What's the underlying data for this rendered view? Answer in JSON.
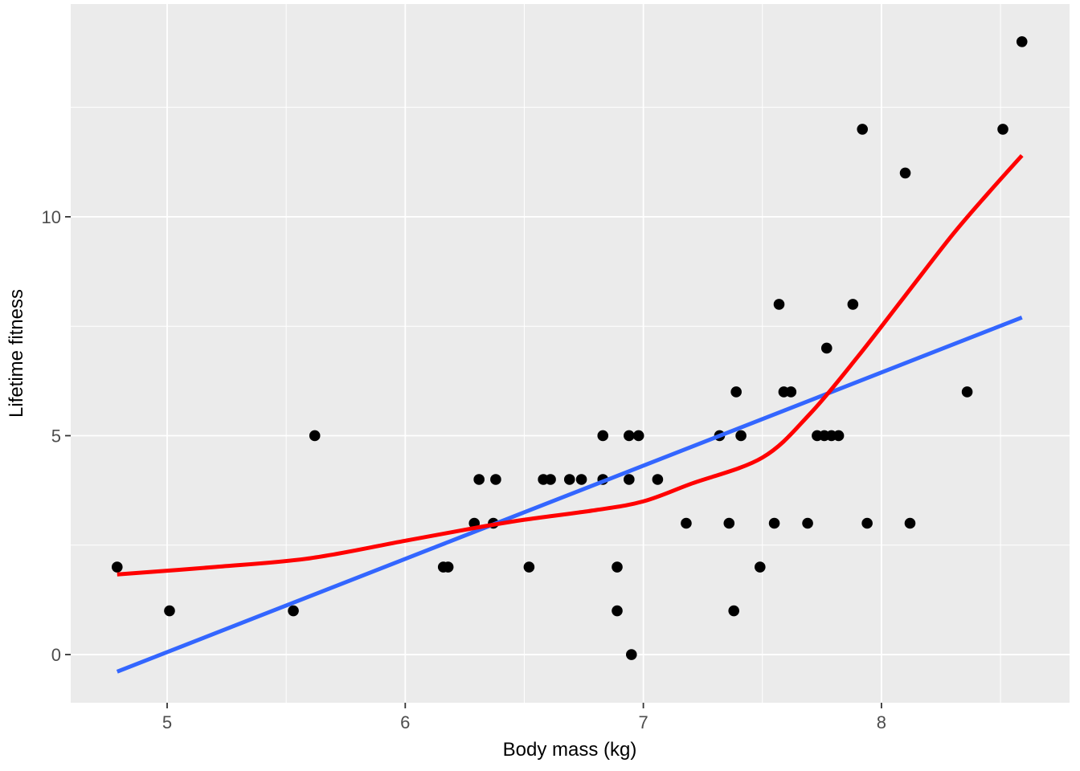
{
  "chart_data": {
    "type": "scatter",
    "title": "",
    "xlabel": "Body mass (kg)",
    "ylabel": "Lifetime fitness",
    "xlim": [
      4.595,
      8.79
    ],
    "ylim": [
      -1.1,
      14.86
    ],
    "x_major_ticks": [
      5,
      6,
      7,
      8
    ],
    "y_major_ticks": [
      0,
      5,
      10
    ],
    "x_minor_ticks": [
      5.5,
      6.5,
      7.5,
      8.5
    ],
    "y_minor_ticks": [
      2.5,
      7.5,
      12.5
    ],
    "grid": "major-and-minor",
    "legend_position": "none",
    "colors": {
      "panel_background": "#EBEBEB",
      "gridline": "#FFFFFF",
      "points": "#000000",
      "linear_fit": "#3366FF",
      "loess_fit": "#FF0000",
      "tick_label": "#4D4D4D",
      "tick_mark": "#333333",
      "axis_title": "#000000"
    },
    "series": [
      {
        "name": "observations",
        "type": "points",
        "points": [
          [
            4.79,
            2
          ],
          [
            5.01,
            1
          ],
          [
            5.53,
            1
          ],
          [
            5.62,
            5
          ],
          [
            6.16,
            2
          ],
          [
            6.18,
            2
          ],
          [
            6.29,
            3
          ],
          [
            6.31,
            4
          ],
          [
            6.37,
            3
          ],
          [
            6.38,
            4
          ],
          [
            6.52,
            2
          ],
          [
            6.58,
            4
          ],
          [
            6.61,
            4
          ],
          [
            6.69,
            4
          ],
          [
            6.74,
            4
          ],
          [
            6.83,
            4
          ],
          [
            6.83,
            5
          ],
          [
            6.89,
            1
          ],
          [
            6.89,
            2
          ],
          [
            6.94,
            4
          ],
          [
            6.94,
            5
          ],
          [
            6.95,
            0
          ],
          [
            6.98,
            5
          ],
          [
            7.06,
            4
          ],
          [
            7.18,
            3
          ],
          [
            7.32,
            5
          ],
          [
            7.36,
            3
          ],
          [
            7.38,
            1
          ],
          [
            7.39,
            6
          ],
          [
            7.41,
            5
          ],
          [
            7.49,
            2
          ],
          [
            7.55,
            3
          ],
          [
            7.57,
            8
          ],
          [
            7.59,
            6
          ],
          [
            7.62,
            6
          ],
          [
            7.69,
            3
          ],
          [
            7.73,
            5
          ],
          [
            7.76,
            5
          ],
          [
            7.77,
            7
          ],
          [
            7.79,
            5
          ],
          [
            7.82,
            5
          ],
          [
            7.88,
            8
          ],
          [
            7.92,
            12
          ],
          [
            7.94,
            3
          ],
          [
            8.1,
            11
          ],
          [
            8.12,
            3
          ],
          [
            8.36,
            6
          ],
          [
            8.51,
            12
          ],
          [
            8.59,
            14
          ]
        ]
      },
      {
        "name": "linear-fit",
        "type": "line",
        "points": [
          [
            4.79,
            -0.39
          ],
          [
            8.59,
            7.7
          ]
        ]
      },
      {
        "name": "loess-fit",
        "type": "smooth-curve",
        "points": [
          [
            4.79,
            1.83
          ],
          [
            5.2,
            2.0
          ],
          [
            5.6,
            2.2
          ],
          [
            6.0,
            2.6
          ],
          [
            6.3,
            2.9
          ],
          [
            6.5,
            3.08
          ],
          [
            6.8,
            3.3
          ],
          [
            7.0,
            3.5
          ],
          [
            7.2,
            3.9
          ],
          [
            7.5,
            4.5
          ],
          [
            7.7,
            5.5
          ],
          [
            7.9,
            6.8
          ],
          [
            8.1,
            8.2
          ],
          [
            8.3,
            9.6
          ],
          [
            8.45,
            10.55
          ],
          [
            8.59,
            11.4
          ]
        ]
      }
    ]
  }
}
